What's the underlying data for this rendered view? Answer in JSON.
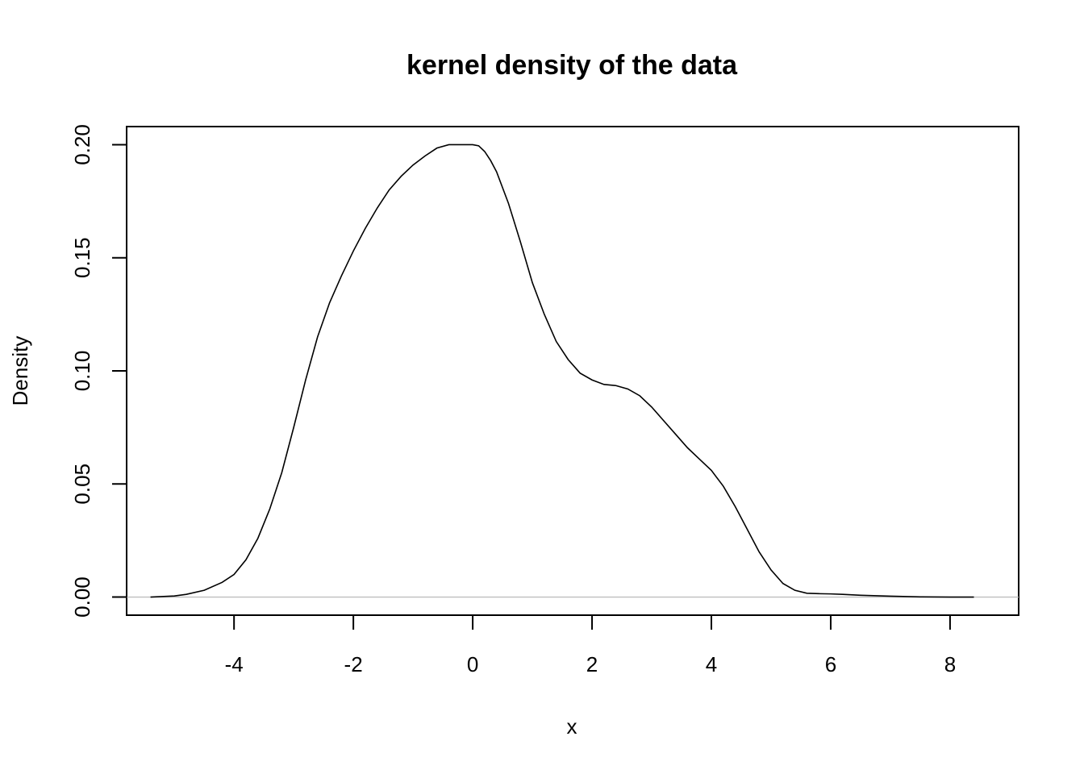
{
  "chart_data": {
    "type": "line",
    "title": "kernel density of the data",
    "xlabel": "x",
    "ylabel": "Density",
    "xlim": [
      -5.8,
      9.15
    ],
    "ylim": [
      -0.008,
      0.208
    ],
    "x_ticks": [
      -4,
      -2,
      0,
      2,
      4,
      6,
      8
    ],
    "x_tick_labels": [
      "-4",
      "-2",
      "0",
      "2",
      "4",
      "6",
      "8"
    ],
    "y_ticks": [
      0.0,
      0.05,
      0.1,
      0.15,
      0.2
    ],
    "y_tick_labels": [
      "0.00",
      "0.05",
      "0.10",
      "0.15",
      "0.20"
    ],
    "grid": false,
    "zero_line": true,
    "series": [
      {
        "x": [
          -5.4,
          -5.0,
          -4.8,
          -4.5,
          -4.2,
          -4.0,
          -3.8,
          -3.6,
          -3.4,
          -3.2,
          -3.0,
          -2.8,
          -2.6,
          -2.4,
          -2.2,
          -2.0,
          -1.8,
          -1.6,
          -1.4,
          -1.2,
          -1.0,
          -0.8,
          -0.6,
          -0.4,
          -0.2,
          0.0,
          0.1,
          0.2,
          0.3,
          0.4,
          0.6,
          0.8,
          1.0,
          1.2,
          1.4,
          1.6,
          1.8,
          2.0,
          2.2,
          2.4,
          2.6,
          2.8,
          3.0,
          3.2,
          3.4,
          3.6,
          3.8,
          4.0,
          4.2,
          4.4,
          4.6,
          4.8,
          5.0,
          5.2,
          5.4,
          5.6,
          5.8,
          6.0,
          6.2,
          6.5,
          7.0,
          7.5,
          8.0,
          8.4
        ],
        "y": [
          0.0,
          0.0005,
          0.0012,
          0.003,
          0.0065,
          0.01,
          0.0165,
          0.026,
          0.039,
          0.055,
          0.075,
          0.096,
          0.115,
          0.13,
          0.142,
          0.153,
          0.163,
          0.172,
          0.18,
          0.186,
          0.191,
          0.195,
          0.1985,
          0.2,
          0.2,
          0.2,
          0.1995,
          0.197,
          0.193,
          0.188,
          0.174,
          0.157,
          0.139,
          0.125,
          0.113,
          0.105,
          0.099,
          0.096,
          0.094,
          0.0935,
          0.092,
          0.089,
          0.084,
          0.078,
          0.072,
          0.066,
          0.061,
          0.056,
          0.049,
          0.04,
          0.03,
          0.02,
          0.012,
          0.006,
          0.003,
          0.0017,
          0.0015,
          0.0014,
          0.0012,
          0.0008,
          0.0004,
          0.0001,
          0.0,
          0.0
        ]
      }
    ]
  }
}
